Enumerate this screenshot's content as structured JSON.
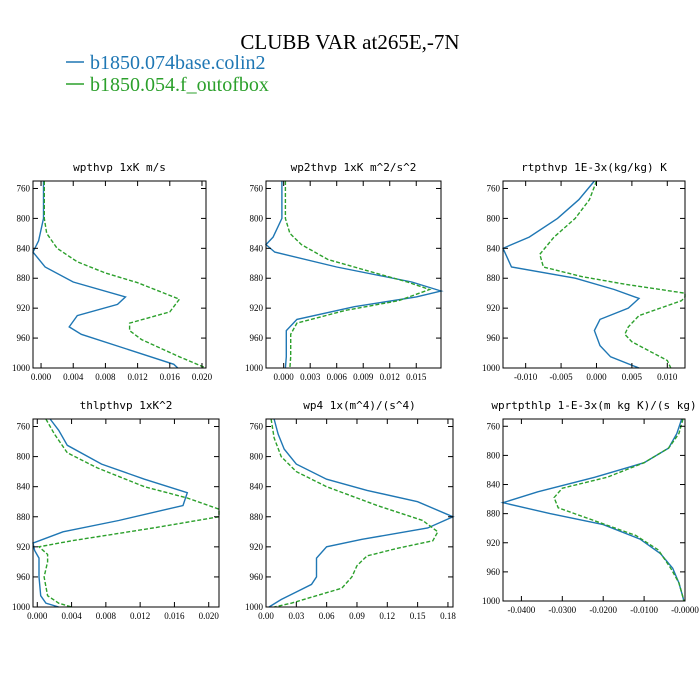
{
  "figure": {
    "title": "CLUBB VAR at265E,-7N",
    "legend": [
      {
        "label": "b1850.074base.colin2",
        "color": "#1f77b4",
        "dash": "solid"
      },
      {
        "label": "b1850.054.f_outofbox",
        "color": "#2ca02c",
        "dash": "dashed"
      }
    ]
  },
  "chart_data": [
    {
      "type": "line",
      "title": "wpthvp   1xK m/s",
      "xlim": [
        -0.001,
        0.0205
      ],
      "ylim": [
        1000,
        750
      ],
      "xticks": [
        0.0,
        0.004,
        0.008,
        0.012,
        0.016,
        0.02
      ],
      "xtick_labels": [
        "0.000",
        "0.004",
        "0.008",
        "0.012",
        "0.016",
        "0.020"
      ],
      "yticks": [
        760,
        800,
        840,
        880,
        920,
        960,
        1000
      ],
      "series": [
        {
          "name": "b1850.074base.colin2",
          "color": "#1f77b4",
          "dash": "solid",
          "points": [
            [
              0.0003,
              750
            ],
            [
              0.0003,
              800
            ],
            [
              -0.0003,
              830
            ],
            [
              -0.001,
              845
            ],
            [
              0.0005,
              865
            ],
            [
              0.004,
              885
            ],
            [
              0.0105,
              905
            ],
            [
              0.0095,
              915
            ],
            [
              0.0045,
              930
            ],
            [
              0.0035,
              945
            ],
            [
              0.005,
              955
            ],
            [
              0.0165,
              995
            ],
            [
              0.017,
              1000
            ]
          ]
        },
        {
          "name": "b1850.054.f_outofbox",
          "color": "#2ca02c",
          "dash": "dashed",
          "points": [
            [
              0.0004,
              750
            ],
            [
              0.0004,
              800
            ],
            [
              0.0007,
              820
            ],
            [
              0.002,
              840
            ],
            [
              0.0045,
              858
            ],
            [
              0.008,
              873
            ],
            [
              0.012,
              886
            ],
            [
              0.0172,
              908
            ],
            [
              0.016,
              925
            ],
            [
              0.011,
              940
            ],
            [
              0.011,
              950
            ],
            [
              0.0125,
              962
            ],
            [
              0.0172,
              985
            ],
            [
              0.0205,
              1000
            ]
          ]
        }
      ]
    },
    {
      "type": "line",
      "title": "wp2thvp   1xK m^2/s^2",
      "xlim": [
        -0.002,
        0.0178
      ],
      "ylim": [
        1000,
        750
      ],
      "xticks": [
        0.0,
        0.003,
        0.006,
        0.009,
        0.012,
        0.015
      ],
      "xtick_labels": [
        "0.000",
        "0.003",
        "0.006",
        "0.009",
        "0.012",
        "0.015"
      ],
      "yticks": [
        760,
        800,
        840,
        880,
        920,
        960,
        1000
      ],
      "series": [
        {
          "name": "b1850.074base.colin2",
          "color": "#1f77b4",
          "dash": "solid",
          "points": [
            [
              -0.0002,
              750
            ],
            [
              -0.0002,
              800
            ],
            [
              -0.0012,
              825
            ],
            [
              -0.002,
              835
            ],
            [
              -0.001,
              845
            ],
            [
              0.006,
              865
            ],
            [
              0.0145,
              885
            ],
            [
              0.0178,
              897
            ],
            [
              0.015,
              905
            ],
            [
              0.008,
              918
            ],
            [
              0.0015,
              935
            ],
            [
              0.0003,
              950
            ],
            [
              0.0003,
              985
            ],
            [
              0.0002,
              1000
            ]
          ]
        },
        {
          "name": "b1850.054.f_outofbox",
          "color": "#2ca02c",
          "dash": "dashed",
          "points": [
            [
              0.0002,
              750
            ],
            [
              0.0002,
              800
            ],
            [
              0.0007,
              820
            ],
            [
              0.002,
              835
            ],
            [
              0.005,
              855
            ],
            [
              0.0095,
              870
            ],
            [
              0.014,
              885
            ],
            [
              0.0165,
              895
            ],
            [
              0.013,
              910
            ],
            [
              0.007,
              923
            ],
            [
              0.0015,
              940
            ],
            [
              0.0008,
              955
            ],
            [
              0.0008,
              985
            ],
            [
              0.0007,
              1000
            ]
          ]
        }
      ]
    },
    {
      "type": "line",
      "title": "rtpthvp   1E-3x(kg/kg) K",
      "xlim": [
        -0.0132,
        0.0125
      ],
      "ylim": [
        1000,
        750
      ],
      "xticks": [
        -0.01,
        -0.005,
        0.0,
        0.005,
        0.01
      ],
      "xtick_labels": [
        "-0.010",
        "-0.005",
        "0.000",
        "0.005",
        "0.010"
      ],
      "yticks": [
        760,
        800,
        840,
        880,
        920,
        960,
        1000
      ],
      "series": [
        {
          "name": "b1850.074base.colin2",
          "color": "#1f77b4",
          "dash": "solid",
          "points": [
            [
              -0.0003,
              750
            ],
            [
              -0.0025,
              775
            ],
            [
              -0.0055,
              800
            ],
            [
              -0.0095,
              825
            ],
            [
              -0.0132,
              840
            ],
            [
              -0.012,
              865
            ],
            [
              -0.003,
              880
            ],
            [
              0.0025,
              895
            ],
            [
              0.006,
              907
            ],
            [
              0.0045,
              920
            ],
            [
              0.0005,
              935
            ],
            [
              -0.0003,
              950
            ],
            [
              0.0005,
              970
            ],
            [
              0.002,
              985
            ],
            [
              0.006,
              1000
            ]
          ]
        },
        {
          "name": "b1850.054.f_outofbox",
          "color": "#2ca02c",
          "dash": "dashed",
          "points": [
            [
              0.0,
              750
            ],
            [
              -0.001,
              775
            ],
            [
              -0.003,
              800
            ],
            [
              -0.006,
              825
            ],
            [
              -0.008,
              848
            ],
            [
              -0.0075,
              865
            ],
            [
              -0.002,
              878
            ],
            [
              0.004,
              888
            ],
            [
              0.0125,
              900
            ],
            [
              0.0125,
              905
            ],
            [
              0.012,
              910
            ],
            [
              0.006,
              930
            ],
            [
              0.0045,
              945
            ],
            [
              0.004,
              955
            ],
            [
              0.005,
              965
            ],
            [
              0.01,
              990
            ],
            [
              0.0105,
              1000
            ]
          ]
        }
      ]
    },
    {
      "type": "line",
      "title": "thlpthvp   1xK^2",
      "xlim": [
        -0.0005,
        0.0212
      ],
      "ylim": [
        1000,
        750
      ],
      "xticks": [
        0.0,
        0.004,
        0.008,
        0.012,
        0.016,
        0.02
      ],
      "xtick_labels": [
        "0.000",
        "0.004",
        "0.008",
        "0.012",
        "0.016",
        "0.020"
      ],
      "yticks": [
        760,
        800,
        840,
        880,
        920,
        960,
        1000
      ],
      "series": [
        {
          "name": "b1850.074base.colin2",
          "color": "#1f77b4",
          "dash": "solid",
          "points": [
            [
              0.0015,
              750
            ],
            [
              0.0025,
              765
            ],
            [
              0.0035,
              785
            ],
            [
              0.0075,
              810
            ],
            [
              0.0125,
              830
            ],
            [
              0.0175,
              848
            ],
            [
              0.017,
              865
            ],
            [
              0.0095,
              885
            ],
            [
              0.003,
              900
            ],
            [
              -0.0005,
              915
            ],
            [
              -0.0003,
              925
            ],
            [
              0.0002,
              935
            ],
            [
              0.0002,
              960
            ],
            [
              0.0004,
              985
            ],
            [
              0.001,
              995
            ],
            [
              0.0025,
              1000
            ]
          ]
        },
        {
          "name": "b1850.054.f_outofbox",
          "color": "#2ca02c",
          "dash": "dashed",
          "points": [
            [
              0.001,
              750
            ],
            [
              0.002,
              770
            ],
            [
              0.0035,
              795
            ],
            [
              0.007,
              815
            ],
            [
              0.0125,
              840
            ],
            [
              0.0175,
              855
            ],
            [
              0.0212,
              870
            ],
            [
              0.0212,
              880
            ],
            [
              0.0135,
              895
            ],
            [
              0.004,
              912
            ],
            [
              0.0002,
              920
            ],
            [
              0.0012,
              930
            ],
            [
              0.0012,
              940
            ],
            [
              0.0008,
              960
            ],
            [
              0.0012,
              985
            ],
            [
              0.0025,
              995
            ],
            [
              0.004,
              1000
            ]
          ]
        }
      ]
    },
    {
      "type": "line",
      "title": "wp4   1x(m^4)/(s^4)",
      "xlim": [
        0.0,
        0.185
      ],
      "ylim": [
        1000,
        750
      ],
      "xticks": [
        0.0,
        0.03,
        0.06,
        0.09,
        0.12,
        0.15,
        0.18
      ],
      "xtick_labels": [
        "0.00",
        "0.03",
        "0.06",
        "0.09",
        "0.12",
        "0.15",
        "0.18"
      ],
      "yticks": [
        760,
        800,
        840,
        880,
        920,
        960,
        1000
      ],
      "series": [
        {
          "name": "b1850.074base.colin2",
          "color": "#1f77b4",
          "dash": "solid",
          "points": [
            [
              0.008,
              750
            ],
            [
              0.012,
              770
            ],
            [
              0.018,
              790
            ],
            [
              0.03,
              810
            ],
            [
              0.06,
              830
            ],
            [
              0.1,
              845
            ],
            [
              0.15,
              860
            ],
            [
              0.185,
              880
            ],
            [
              0.16,
              895
            ],
            [
              0.095,
              910
            ],
            [
              0.06,
              920
            ],
            [
              0.05,
              935
            ],
            [
              0.05,
              960
            ],
            [
              0.045,
              970
            ],
            [
              0.03,
              980
            ],
            [
              0.015,
              990
            ],
            [
              0.003,
              1000
            ]
          ]
        },
        {
          "name": "b1850.054.f_outofbox",
          "color": "#2ca02c",
          "dash": "dashed",
          "points": [
            [
              0.005,
              750
            ],
            [
              0.008,
              775
            ],
            [
              0.015,
              800
            ],
            [
              0.03,
              820
            ],
            [
              0.06,
              840
            ],
            [
              0.11,
              865
            ],
            [
              0.155,
              885
            ],
            [
              0.17,
              900
            ],
            [
              0.165,
              912
            ],
            [
              0.13,
              922
            ],
            [
              0.1,
              932
            ],
            [
              0.09,
              945
            ],
            [
              0.085,
              960
            ],
            [
              0.075,
              975
            ],
            [
              0.05,
              985
            ],
            [
              0.025,
              995
            ],
            [
              0.008,
              1000
            ]
          ]
        }
      ]
    },
    {
      "type": "line",
      "title": "wprtpthlp   1-E-3x(m kg K)/(s kg)",
      "xlim": [
        -0.0445,
        0.0
      ],
      "ylim": [
        1000,
        750
      ],
      "xticks": [
        -0.04,
        -0.03,
        -0.02,
        -0.01,
        0.0
      ],
      "xtick_labels": [
        "-0.0400",
        "-0.0300",
        "-0.0200",
        "-0.0100",
        "-0.0000"
      ],
      "yticks": [
        760,
        800,
        840,
        880,
        920,
        960,
        1000
      ],
      "series": [
        {
          "name": "b1850.074base.colin2",
          "color": "#1f77b4",
          "dash": "solid",
          "points": [
            [
              -0.0008,
              750
            ],
            [
              -0.002,
              770
            ],
            [
              -0.004,
              790
            ],
            [
              -0.01,
              810
            ],
            [
              -0.022,
              830
            ],
            [
              -0.036,
              850
            ],
            [
              -0.0445,
              865
            ],
            [
              -0.033,
              880
            ],
            [
              -0.02,
              895
            ],
            [
              -0.011,
              915
            ],
            [
              -0.006,
              935
            ],
            [
              -0.003,
              955
            ],
            [
              -0.0015,
              975
            ],
            [
              -0.0005,
              995
            ],
            [
              -0.0003,
              1000
            ]
          ]
        },
        {
          "name": "b1850.054.f_outofbox",
          "color": "#2ca02c",
          "dash": "dashed",
          "points": [
            [
              -0.0005,
              750
            ],
            [
              -0.0015,
              770
            ],
            [
              -0.004,
              790
            ],
            [
              -0.01,
              810
            ],
            [
              -0.019,
              830
            ],
            [
              -0.03,
              845
            ],
            [
              -0.032,
              858
            ],
            [
              -0.031,
              872
            ],
            [
              -0.022,
              890
            ],
            [
              -0.012,
              910
            ],
            [
              -0.0065,
              930
            ],
            [
              -0.0035,
              955
            ],
            [
              -0.0015,
              975
            ],
            [
              -0.0005,
              995
            ],
            [
              -0.0003,
              1000
            ]
          ]
        }
      ]
    }
  ]
}
